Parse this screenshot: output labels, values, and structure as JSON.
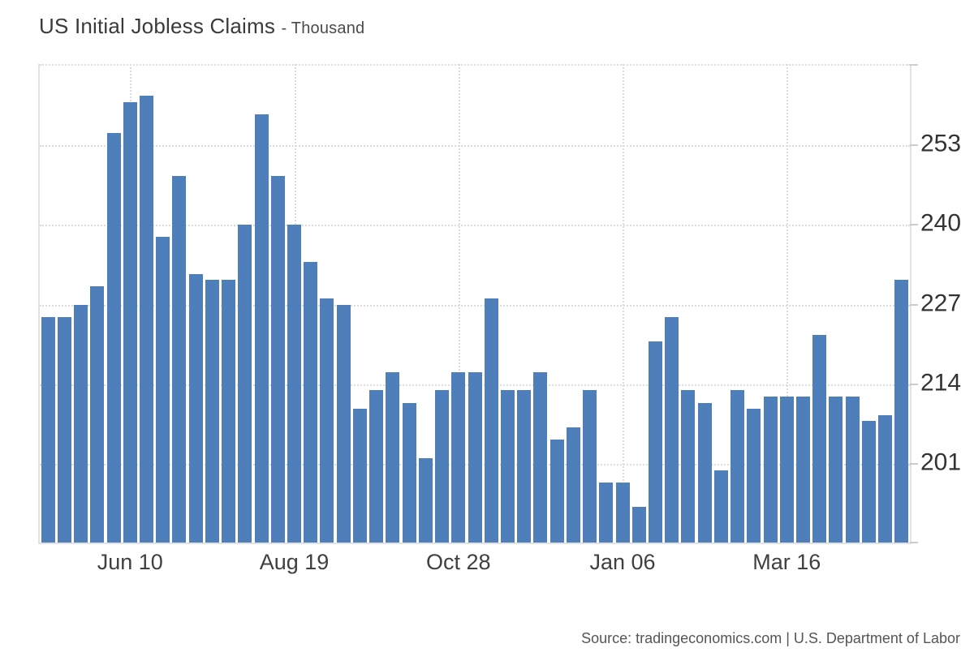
{
  "title": {
    "text": "US Initial Jobless Claims",
    "suffix": "- Thousand"
  },
  "source": "Source: tradingeconomics.com | U.S. Department of Labor",
  "colors": {
    "bar": "#4e7fba",
    "grid": "#dcdcdc",
    "axis": "#e2e2e2",
    "tick": "#cccccc",
    "y_label": "#333333",
    "x_label": "#404040",
    "title": "#3a3a3a",
    "source": "#555555",
    "background": "#ffffff"
  },
  "chart_data": {
    "type": "bar",
    "title": "US Initial Jobless Claims",
    "subtitle": "- Thousand",
    "ylabel": "Thousand",
    "xlabel": "",
    "grid": "dotted",
    "legend": "none",
    "y_ticks": [
      253,
      240,
      227,
      214,
      201
    ],
    "y_axis_side": "right",
    "ylim": [
      188.2,
      266.2
    ],
    "x_tick_labels": [
      "Jun 10",
      "Aug 19",
      "Oct 28",
      "Jan 06",
      "Mar 16"
    ],
    "x_tick_bar_indices": [
      5,
      15,
      25,
      35,
      45
    ],
    "values": [
      225,
      225,
      227,
      230,
      255,
      260,
      261,
      238,
      248,
      232,
      231,
      231,
      240,
      258,
      248,
      240,
      234,
      228,
      227,
      210,
      213,
      216,
      211,
      202,
      213,
      216,
      216,
      228,
      213,
      213,
      216,
      205,
      207,
      213,
      198,
      198,
      194,
      221,
      225,
      213,
      211,
      200,
      213,
      210,
      212,
      212,
      212,
      222,
      212,
      212,
      208,
      209,
      231
    ]
  }
}
